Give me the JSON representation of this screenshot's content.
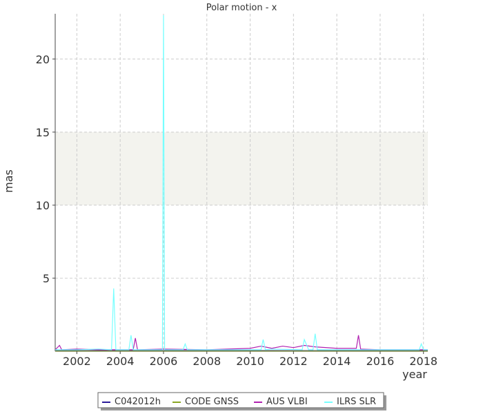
{
  "chart_data": {
    "type": "line",
    "title": "Polar motion - x",
    "xlabel": "year",
    "ylabel": "mas",
    "xlim": [
      2001.0,
      2018.2
    ],
    "ylim": [
      0,
      23.1
    ],
    "xticks": [
      2002,
      2004,
      2006,
      2008,
      2010,
      2012,
      2014,
      2016,
      2018
    ],
    "yticks": [
      5,
      10,
      15,
      20
    ],
    "grid": true,
    "shaded_band": [
      10,
      15
    ],
    "legend": "bottom",
    "series": [
      {
        "name": "C042012h",
        "color": "#2a1a9a",
        "x": [
          2001.0,
          2003,
          2005,
          2007,
          2009,
          2011,
          2013,
          2015,
          2017,
          2018.2
        ],
        "values": [
          0.05,
          0.05,
          0.04,
          0.05,
          0.04,
          0.05,
          0.04,
          0.05,
          0.04,
          0.05
        ]
      },
      {
        "name": "CODE GNSS",
        "color": "#8aa623",
        "x": [
          2001.0,
          2004,
          2008,
          2012,
          2016,
          2018.2
        ],
        "values": [
          0.02,
          0.02,
          0.02,
          0.02,
          0.02,
          0.02
        ]
      },
      {
        "name": "AUS VLBI",
        "color": "#b020b0",
        "x": [
          2001.0,
          2001.2,
          2001.3,
          2002.0,
          2003.0,
          2004.6,
          2004.7,
          2004.8,
          2006.0,
          2008.0,
          2010.0,
          2010.5,
          2011.0,
          2011.5,
          2012.0,
          2012.5,
          2013.0,
          2014.0,
          2014.9,
          2015.0,
          2015.1,
          2016.0,
          2017.0,
          2018.2
        ],
        "values": [
          0.1,
          0.4,
          0.1,
          0.15,
          0.1,
          0.1,
          0.9,
          0.1,
          0.15,
          0.1,
          0.2,
          0.35,
          0.2,
          0.35,
          0.25,
          0.4,
          0.3,
          0.2,
          0.2,
          1.1,
          0.15,
          0.1,
          0.1,
          0.1
        ]
      },
      {
        "name": "ILRS SLR",
        "color": "#77ffff",
        "x": [
          2001.0,
          2002.0,
          2003.0,
          2003.6,
          2003.7,
          2003.8,
          2004.4,
          2004.5,
          2004.6,
          2005.5,
          2005.95,
          2006.0,
          2006.05,
          2006.9,
          2007.0,
          2007.1,
          2009.0,
          2010.5,
          2010.6,
          2010.7,
          2011.0,
          2012.4,
          2012.5,
          2012.7,
          2012.9,
          2013.0,
          2013.1,
          2015.0,
          2017.8,
          2017.9,
          2018.0,
          2018.2
        ],
        "values": [
          0.1,
          0.1,
          0.15,
          0.1,
          4.3,
          0.1,
          0.1,
          1.1,
          0.1,
          0.1,
          0.1,
          23,
          0.1,
          0.1,
          0.5,
          0.1,
          0.1,
          0.1,
          0.8,
          0.1,
          0.15,
          0.1,
          0.8,
          0.1,
          0.1,
          1.2,
          0.1,
          0.1,
          0.1,
          0.5,
          0.1,
          0.1
        ]
      }
    ]
  }
}
